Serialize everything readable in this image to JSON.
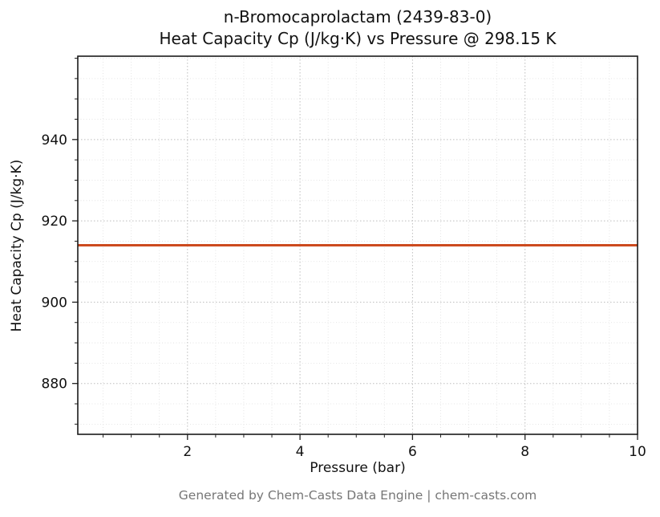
{
  "chart_data": {
    "type": "line",
    "title": "n-Bromocaprolactam (2439-83-0)",
    "subtitle": "Heat Capacity Cp (J/kg·K) vs Pressure @ 298.15 K",
    "xlabel": "Pressure (bar)",
    "ylabel": "Heat Capacity Cp (J/kg·K)",
    "xlim": [
      0.05,
      10
    ],
    "ylim": [
      867.5,
      960.5
    ],
    "xticks": [
      2,
      4,
      6,
      8,
      10
    ],
    "yticks": [
      880,
      900,
      920,
      940
    ],
    "x_minor_step": 0.5,
    "y_minor_step": 5,
    "grid": true,
    "legend": "none",
    "series": [
      {
        "name": "Heat Capacity Cp",
        "color": "#cc4a1e",
        "line_width": 3,
        "x": [
          0.05,
          10
        ],
        "y": [
          914,
          914
        ]
      }
    ]
  },
  "footer": {
    "text": "Generated by Chem-Casts Data Engine | chem-casts.com"
  }
}
